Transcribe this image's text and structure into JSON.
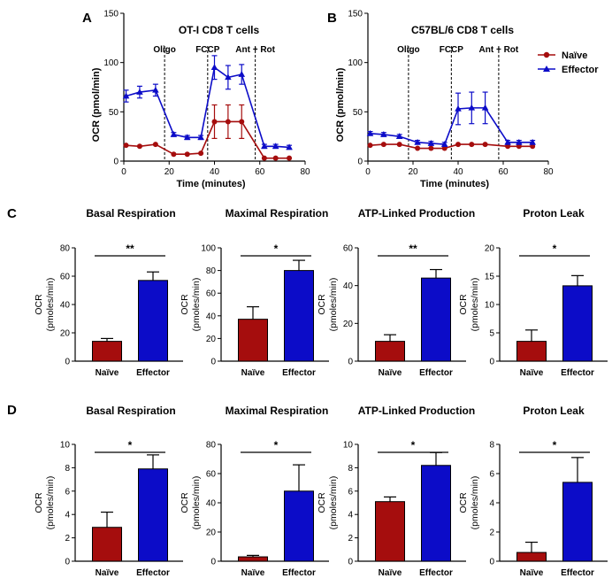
{
  "colors": {
    "naive": "#a50d0d",
    "effector": "#0c0cc8"
  },
  "legend": {
    "naive": "Naïve",
    "effector": "Effector"
  },
  "panel_letters": {
    "A": "A",
    "B": "B",
    "C": "C",
    "D": "D"
  },
  "chart_data": [
    {
      "id": "A",
      "type": "line",
      "title": "OT-I CD8 T cells",
      "xlabel": "Time (minutes)",
      "ylabel": "OCR (pmol/min)",
      "xlim": [
        0,
        80
      ],
      "ylim": [
        0,
        150
      ],
      "xticks": [
        0,
        20,
        40,
        60,
        80
      ],
      "yticks": [
        0,
        50,
        100,
        150
      ],
      "injections": [
        {
          "label": "Oligo",
          "x": 18
        },
        {
          "label": "FCCP",
          "x": 37
        },
        {
          "label": "Ant + Rot",
          "x": 58
        }
      ],
      "series": [
        {
          "name": "Naïve",
          "key": "naive",
          "marker": "circle",
          "x": [
            1,
            7,
            14,
            22,
            28,
            34,
            40,
            46,
            52,
            62,
            67,
            73
          ],
          "y": [
            16,
            15,
            17,
            7,
            7,
            8,
            40,
            40,
            40,
            3,
            3,
            3
          ],
          "err": [
            1,
            1,
            1,
            1,
            1,
            1,
            17,
            17,
            17,
            1,
            1,
            1
          ]
        },
        {
          "name": "Effector",
          "key": "effector",
          "marker": "triangle",
          "x": [
            1,
            7,
            14,
            22,
            28,
            34,
            40,
            46,
            52,
            62,
            67,
            73
          ],
          "y": [
            66,
            70,
            72,
            27,
            24,
            24,
            95,
            85,
            88,
            15,
            15,
            14
          ],
          "err": [
            6,
            6,
            6,
            2,
            2,
            2,
            12,
            12,
            10,
            2,
            2,
            2
          ]
        }
      ]
    },
    {
      "id": "B",
      "type": "line",
      "title": "C57BL/6 CD8 T cells",
      "xlabel": "Time (minutes)",
      "ylabel": "OCR (pmol/min)",
      "xlim": [
        0,
        80
      ],
      "ylim": [
        0,
        150
      ],
      "xticks": [
        0,
        20,
        40,
        60,
        80
      ],
      "yticks": [
        0,
        50,
        100,
        150
      ],
      "injections": [
        {
          "label": "Oligo",
          "x": 18
        },
        {
          "label": "FCCP",
          "x": 37
        },
        {
          "label": "Ant + Rot",
          "x": 58
        }
      ],
      "series": [
        {
          "name": "Naïve",
          "key": "naive",
          "marker": "circle",
          "x": [
            1,
            7,
            14,
            22,
            28,
            34,
            40,
            46,
            52,
            62,
            67,
            73
          ],
          "y": [
            16,
            17,
            17,
            13,
            13,
            13,
            17,
            17,
            17,
            15,
            15,
            15
          ],
          "err": [
            1,
            1,
            1,
            1,
            1,
            1,
            1,
            1,
            1,
            1,
            1,
            1
          ]
        },
        {
          "name": "Effector",
          "key": "effector",
          "marker": "triangle",
          "x": [
            1,
            7,
            14,
            22,
            28,
            34,
            40,
            46,
            52,
            62,
            67,
            73
          ],
          "y": [
            28,
            27,
            25,
            19,
            18,
            17,
            53,
            54,
            54,
            19,
            19,
            19
          ],
          "err": [
            2,
            2,
            2,
            2,
            2,
            2,
            16,
            16,
            16,
            2,
            2,
            2
          ]
        }
      ]
    },
    {
      "id": "C1",
      "type": "bar",
      "title": "Basal Respiration",
      "ylabel": "OCR (pmoles/min)",
      "categories": [
        "Naïve",
        "Effector"
      ],
      "values": [
        14,
        57
      ],
      "errors": [
        2,
        6
      ],
      "ylim": [
        0,
        80
      ],
      "yticks": [
        0,
        20,
        40,
        60,
        80
      ],
      "significance": "**"
    },
    {
      "id": "C2",
      "type": "bar",
      "title": "Maximal Respiration",
      "ylabel": "OCR (pmoles/min)",
      "categories": [
        "Naïve",
        "Effector"
      ],
      "values": [
        37,
        80
      ],
      "errors": [
        11,
        9
      ],
      "ylim": [
        0,
        100
      ],
      "yticks": [
        0,
        20,
        40,
        60,
        80,
        100
      ],
      "significance": "*"
    },
    {
      "id": "C3",
      "type": "bar",
      "title": "ATP-Linked Production",
      "ylabel": "OCR (pmoles/min)",
      "categories": [
        "Naïve",
        "Effector"
      ],
      "values": [
        10.5,
        44
      ],
      "errors": [
        3.5,
        4.5
      ],
      "ylim": [
        0,
        60
      ],
      "yticks": [
        0,
        20,
        40,
        60
      ],
      "significance": "**"
    },
    {
      "id": "C4",
      "type": "bar",
      "title": "Proton Leak",
      "ylabel": "OCR (pmoles/min)",
      "categories": [
        "Naïve",
        "Effector"
      ],
      "values": [
        3.5,
        13.3
      ],
      "errors": [
        2,
        1.8
      ],
      "ylim": [
        0,
        20
      ],
      "yticks": [
        0,
        5,
        10,
        15,
        20
      ],
      "significance": "*"
    },
    {
      "id": "D1",
      "type": "bar",
      "title": "Basal Respiration",
      "ylabel": "OCR (pmoles/min)",
      "categories": [
        "Naïve",
        "Effector"
      ],
      "values": [
        2.9,
        7.9
      ],
      "errors": [
        1.3,
        1.2
      ],
      "ylim": [
        0,
        10
      ],
      "yticks": [
        0,
        2,
        4,
        6,
        8,
        10
      ],
      "significance": "*"
    },
    {
      "id": "D2",
      "type": "bar",
      "title": "Maximal Respiration",
      "ylabel": "OCR (pmoles/min)",
      "categories": [
        "Naïve",
        "Effector"
      ],
      "values": [
        3,
        48
      ],
      "errors": [
        1,
        18
      ],
      "ylim": [
        0,
        80
      ],
      "yticks": [
        0,
        20,
        40,
        60,
        80
      ],
      "significance": "*"
    },
    {
      "id": "D3",
      "type": "bar",
      "title": "ATP-Linked Production",
      "ylabel": "OCR (pmoles/min)",
      "categories": [
        "Naïve",
        "Effector"
      ],
      "values": [
        5.1,
        8.2
      ],
      "errors": [
        0.4,
        1.1
      ],
      "ylim": [
        0,
        10
      ],
      "yticks": [
        0,
        2,
        4,
        6,
        8,
        10
      ],
      "significance": "*"
    },
    {
      "id": "D4",
      "type": "bar",
      "title": "Proton Leak",
      "ylabel": "OCR (pmoles/min)",
      "categories": [
        "Naïve",
        "Effector"
      ],
      "values": [
        0.6,
        5.4
      ],
      "errors": [
        0.7,
        1.7
      ],
      "ylim": [
        0,
        8
      ],
      "yticks": [
        0,
        2,
        4,
        6,
        8
      ],
      "significance": "*"
    }
  ]
}
